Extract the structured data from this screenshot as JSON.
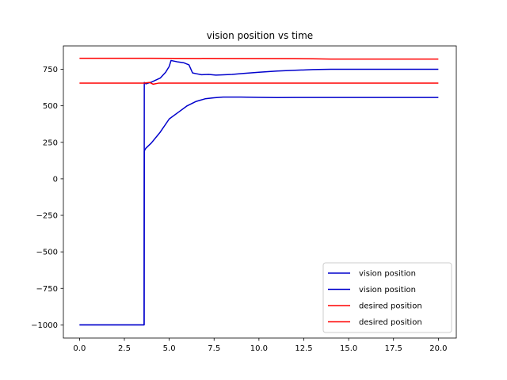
{
  "chart_data": {
    "type": "line",
    "title": "vision position vs time",
    "xlabel": "",
    "ylabel": "",
    "xlim": [
      -0.9,
      21.0
    ],
    "ylim": [
      -1090,
      910
    ],
    "xticks": [
      0.0,
      2.5,
      5.0,
      7.5,
      10.0,
      12.5,
      15.0,
      17.5,
      20.0
    ],
    "xtick_labels": [
      "0.0",
      "2.5",
      "5.0",
      "7.5",
      "10.0",
      "12.5",
      "15.0",
      "17.5",
      "20.0"
    ],
    "yticks": [
      -1000,
      -750,
      -500,
      -250,
      0,
      250,
      500,
      750
    ],
    "ytick_labels": [
      "−1000",
      "−750",
      "−500",
      "−250",
      "0",
      "250",
      "500",
      "750"
    ],
    "grid": false,
    "legend_position": "lower-right",
    "series": [
      {
        "name": "vision position",
        "color": "#0000cc",
        "x": [
          0.0,
          3.6,
          3.61,
          3.7,
          4.0,
          4.5,
          4.8,
          5.0,
          5.1,
          5.5,
          5.8,
          6.1,
          6.3,
          6.5,
          6.8,
          7.2,
          7.6,
          8.0,
          8.5,
          9.0,
          10.0,
          11.0,
          12.0,
          13.0,
          14.0,
          16.0,
          18.0,
          20.0
        ],
        "y": [
          -1000,
          -1000,
          660,
          650,
          662,
          690,
          730,
          770,
          810,
          800,
          795,
          780,
          725,
          720,
          713,
          715,
          710,
          712,
          715,
          720,
          730,
          738,
          743,
          748,
          750,
          750,
          750,
          750
        ]
      },
      {
        "name": "vision position",
        "color": "#0000cc",
        "x": [
          0.0,
          3.6,
          3.61,
          3.65,
          3.7,
          4.0,
          4.5,
          5.0,
          5.5,
          6.0,
          6.5,
          7.0,
          7.5,
          8.0,
          8.5,
          9.0,
          10.0,
          11.0,
          12.0,
          14.0,
          16.0,
          18.0,
          20.0
        ],
        "y": [
          -1000,
          -1000,
          190,
          200,
          210,
          245,
          320,
          410,
          455,
          500,
          530,
          548,
          555,
          560,
          560,
          560,
          558,
          556,
          557,
          557,
          557,
          557,
          557
        ]
      },
      {
        "name": "desired position",
        "color": "#ff0000",
        "x": [
          0.0,
          4.0,
          8.0,
          12.0,
          13.0,
          14.0,
          16.0,
          18.0,
          20.0
        ],
        "y": [
          825,
          825,
          824,
          823,
          822,
          820,
          820,
          820,
          820
        ]
      },
      {
        "name": "desired position",
        "color": "#ff0000",
        "x": [
          0.0,
          3.6,
          3.9,
          4.1,
          4.4,
          5.0,
          8.0,
          12.0,
          16.0,
          20.0
        ],
        "y": [
          655,
          655,
          660,
          648,
          655,
          655,
          655,
          655,
          655,
          655
        ]
      }
    ]
  }
}
